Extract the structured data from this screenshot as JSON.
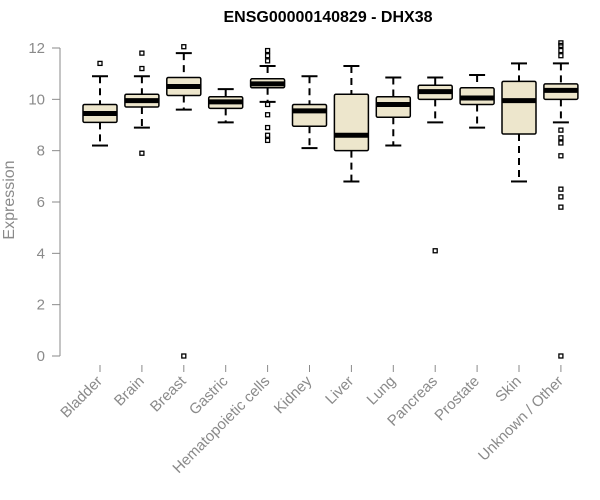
{
  "chart_data": {
    "type": "boxplot",
    "title": "ENSG00000140829 - DHX38",
    "xlabel": "",
    "ylabel": "Expression",
    "ylim": [
      0,
      12
    ],
    "yticks": [
      0,
      2,
      4,
      6,
      8,
      10,
      12
    ],
    "grid": false,
    "legend": "none",
    "colors": {
      "box_fill": "#ede6cc",
      "stroke": "#000000",
      "axis": "#8a8a8a"
    },
    "categories": [
      "Bladder",
      "Brain",
      "Breast",
      "Gastric",
      "Hematopoietic cells",
      "Kidney",
      "Liver",
      "Lung",
      "Pancreas",
      "Prostate",
      "Skin",
      "Unknown / Other"
    ],
    "boxes": [
      {
        "q1": 9.1,
        "median": 9.45,
        "q3": 9.8,
        "whisker_low": 8.2,
        "whisker_high": 10.9,
        "outliers": [
          11.4
        ]
      },
      {
        "q1": 9.7,
        "median": 9.95,
        "q3": 10.2,
        "whisker_low": 8.9,
        "whisker_high": 10.9,
        "outliers": [
          7.9,
          11.2,
          11.8
        ]
      },
      {
        "q1": 10.15,
        "median": 10.5,
        "q3": 10.85,
        "whisker_low": 9.6,
        "whisker_high": 11.8,
        "outliers": [
          0.0,
          12.05
        ]
      },
      {
        "q1": 9.65,
        "median": 9.9,
        "q3": 10.1,
        "whisker_low": 9.1,
        "whisker_high": 10.4,
        "outliers": []
      },
      {
        "q1": 10.45,
        "median": 10.6,
        "q3": 10.8,
        "whisker_low": 9.9,
        "whisker_high": 11.3,
        "outliers": [
          8.4,
          8.6,
          8.9,
          9.4,
          9.8,
          11.5,
          11.7,
          11.9
        ]
      },
      {
        "q1": 8.95,
        "median": 9.55,
        "q3": 9.8,
        "whisker_low": 8.1,
        "whisker_high": 10.9,
        "outliers": []
      },
      {
        "q1": 8.0,
        "median": 8.6,
        "q3": 10.2,
        "whisker_low": 6.8,
        "whisker_high": 11.3,
        "outliers": []
      },
      {
        "q1": 9.3,
        "median": 9.8,
        "q3": 10.1,
        "whisker_low": 8.2,
        "whisker_high": 10.85,
        "outliers": []
      },
      {
        "q1": 10.0,
        "median": 10.3,
        "q3": 10.55,
        "whisker_low": 9.1,
        "whisker_high": 10.85,
        "outliers": [
          4.1
        ]
      },
      {
        "q1": 9.8,
        "median": 10.05,
        "q3": 10.45,
        "whisker_low": 8.9,
        "whisker_high": 10.95,
        "outliers": []
      },
      {
        "q1": 8.65,
        "median": 9.95,
        "q3": 10.7,
        "whisker_low": 6.8,
        "whisker_high": 11.4,
        "outliers": []
      },
      {
        "q1": 10.0,
        "median": 10.35,
        "q3": 10.6,
        "whisker_low": 9.1,
        "whisker_high": 11.4,
        "outliers": [
          0.0,
          5.8,
          6.2,
          6.5,
          7.8,
          8.3,
          8.5,
          8.8,
          11.7,
          11.9,
          12.1,
          12.2
        ]
      }
    ]
  }
}
